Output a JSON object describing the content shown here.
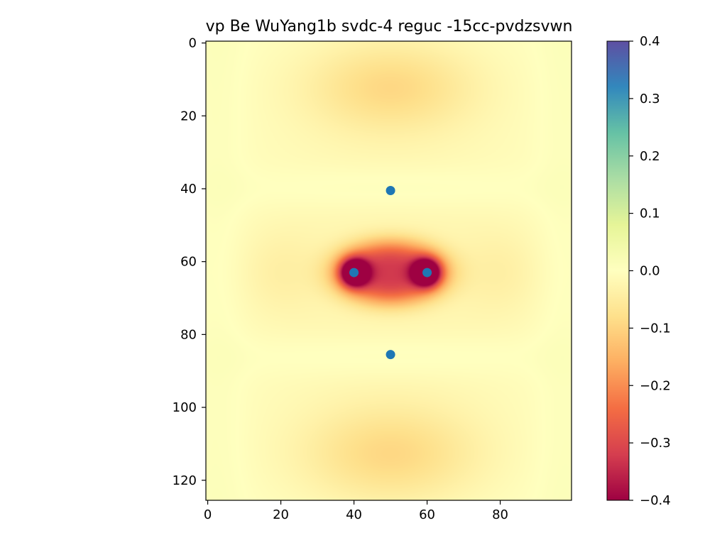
{
  "chart_data": {
    "type": "heatmap",
    "title": "vp Be WuYang1b svdc-4 reguc -15cc-pvdzsvwn",
    "xlabel": "",
    "ylabel": "",
    "xlim": [
      -0.5,
      99.5
    ],
    "ylim": [
      125.5,
      -0.5
    ],
    "x_ticks": [
      0,
      20,
      40,
      60,
      80
    ],
    "y_ticks": [
      0,
      20,
      40,
      60,
      80,
      100,
      120
    ],
    "colormap": "Spectral",
    "colorbar": {
      "vmin": -0.4,
      "vmax": 0.4,
      "ticks": [
        0.4,
        0.3,
        0.2,
        0.1,
        0.0,
        -0.1,
        -0.2,
        -0.3,
        -0.4
      ],
      "tick_labels": [
        "0.4",
        "0.3",
        "0.2",
        "0.1",
        "0.0",
        "−0.1",
        "−0.2",
        "−0.3",
        "−0.4"
      ]
    },
    "field_features": [
      {
        "kind": "well",
        "x": 40,
        "y": 63,
        "depth": -0.4
      },
      {
        "kind": "well",
        "x": 60,
        "y": 63,
        "depth": -0.4
      },
      {
        "kind": "bond-region",
        "x": 50,
        "y": 63,
        "value": -0.3
      },
      {
        "kind": "lobe",
        "x": 50,
        "y": 12,
        "value": -0.08
      },
      {
        "kind": "lobe",
        "x": 50,
        "y": 113,
        "value": -0.08
      }
    ],
    "points": [
      {
        "x": 50,
        "y": 40.5
      },
      {
        "x": 40,
        "y": 63
      },
      {
        "x": 60,
        "y": 63
      },
      {
        "x": 50,
        "y": 85.5
      }
    ],
    "point_color": "#1f77b4"
  }
}
